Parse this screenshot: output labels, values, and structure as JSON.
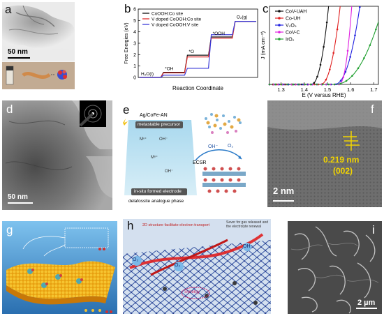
{
  "panels": {
    "a": {
      "label": "a",
      "scale_bar": "50 nm"
    },
    "b": {
      "label": "b"
    },
    "c": {
      "label": "c"
    },
    "d": {
      "label": "d",
      "scale_bar": "50 nm"
    },
    "e": {
      "label": "e",
      "top_label": "Ag/CoFe-AN",
      "box1": "metastable precursor",
      "box2": "in-situ formed electrode",
      "bottom_label": "delafossite analogue phase",
      "ecsr": "ECSR",
      "oh": "OH⁻",
      "o2": "O₂",
      "m_label": "Mⁿ⁺",
      "oh_label": "OH⁻"
    },
    "f": {
      "label": "f",
      "lattice": "0.219 nm",
      "plane": "(002)",
      "scale_bar": "2 nm"
    },
    "g": {
      "label": "g"
    },
    "h": {
      "label": "h",
      "top_text": "2D structure facilitate electron transport",
      "side_text": "Sever for gas released and the electrolyte renewal",
      "o2_left": "O₂",
      "o2_center": "O₂",
      "oh": "OH⁻",
      "synergy": "Synergy"
    },
    "i": {
      "label": "i",
      "scale_bar": "2 µm"
    }
  },
  "chart_data": [
    {
      "type": "line",
      "panel": "b",
      "xlabel": "Reaction Coordinate",
      "ylabel": "Free Energies (eV)",
      "ylim": [
        0,
        6
      ],
      "yticks": [
        0,
        1,
        2,
        3,
        4,
        5,
        6
      ],
      "steps": [
        "H₂O(l)",
        "*OH",
        "*O",
        "*OOH",
        "O₂(g)"
      ],
      "series": [
        {
          "name": "CoOOH:Co site",
          "color": "#111111",
          "values": [
            0,
            0.45,
            1.95,
            3.55,
            4.92
          ]
        },
        {
          "name": "V doped CoOOH:Co site",
          "color": "#e03030",
          "values": [
            0,
            0.4,
            1.8,
            3.45,
            4.92
          ]
        },
        {
          "name": "V doped CoOOH:V site",
          "color": "#3a3ad8",
          "values": [
            0,
            0.2,
            0.8,
            3.75,
            4.92
          ]
        }
      ]
    },
    {
      "type": "line",
      "panel": "c",
      "xlabel": "E (V versus RHE)",
      "ylabel": "J (mA cm⁻²)",
      "xlim": [
        1.25,
        1.72
      ],
      "xticks": [
        1.3,
        1.4,
        1.5,
        1.6,
        1.7
      ],
      "ylim": [
        0,
        140
      ],
      "series": [
        {
          "name": "CoV-UAH",
          "color": "#111111",
          "onset": 1.43,
          "x_at_top": 1.505
        },
        {
          "name": "Co-UH",
          "color": "#e02020",
          "onset": 1.47,
          "x_at_top": 1.555
        },
        {
          "name": "V₂O₅",
          "color": "#2020e0",
          "onset": 1.53,
          "x_at_top": 1.64
        },
        {
          "name": "CoV-C",
          "color": "#e020e0",
          "onset": 1.55,
          "x_at_top": 1.605
        },
        {
          "name": "IrO₂",
          "color": "#20a030",
          "onset": 1.53,
          "x_at_top": 1.74
        }
      ]
    }
  ]
}
